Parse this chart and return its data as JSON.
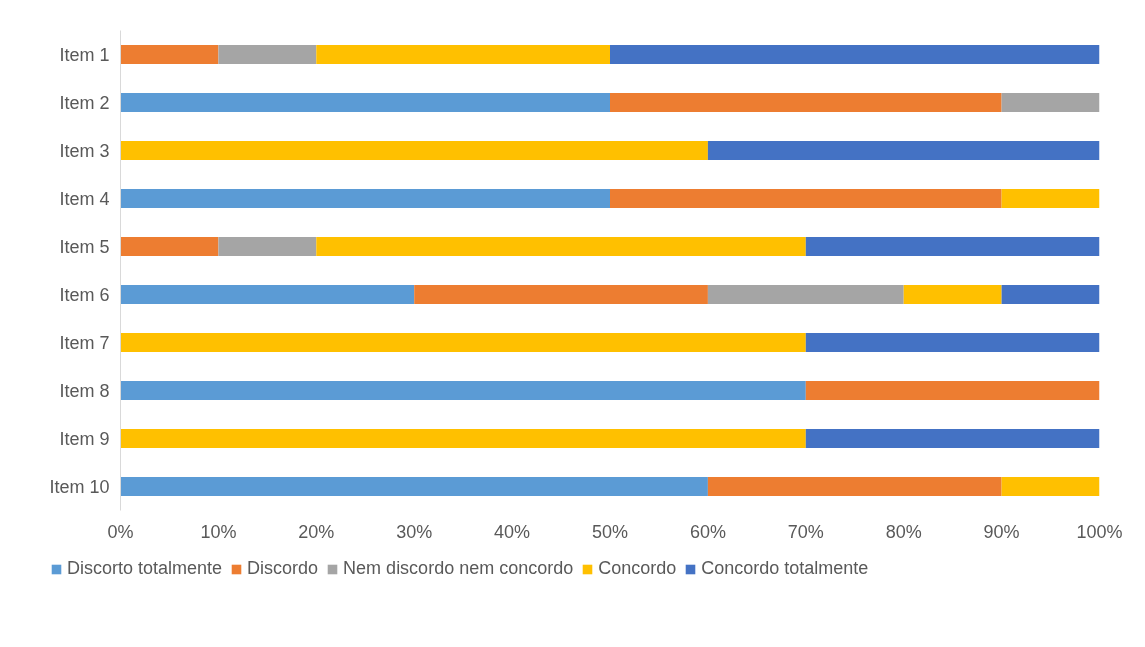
{
  "chart_data": {
    "type": "bar",
    "orientation": "horizontal",
    "stacked": true,
    "categories": [
      "Item 1",
      "Item 2",
      "Item 3",
      "Item 4",
      "Item 5",
      "Item 6",
      "Item 7",
      "Item 8",
      "Item 9",
      "Item 10"
    ],
    "series": [
      {
        "name": "Discorto totalmente",
        "color": "#5b9bd5",
        "values": [
          0,
          50,
          0,
          50,
          0,
          30,
          0,
          70,
          0,
          60
        ]
      },
      {
        "name": "Discordo",
        "color": "#ed7d31",
        "values": [
          10,
          40,
          0,
          40,
          10,
          30,
          0,
          30,
          0,
          30
        ]
      },
      {
        "name": "Nem discordo nem concordo",
        "color": "#a5a5a5",
        "values": [
          10,
          10,
          0,
          0,
          10,
          20,
          0,
          0,
          0,
          0
        ]
      },
      {
        "name": "Concordo",
        "color": "#ffc000",
        "values": [
          30,
          0,
          60,
          10,
          50,
          10,
          70,
          0,
          70,
          10
        ]
      },
      {
        "name": "Concordo totalmente",
        "color": "#4472c4",
        "values": [
          50,
          0,
          40,
          0,
          30,
          10,
          30,
          0,
          30,
          0
        ]
      }
    ],
    "xlim": [
      0,
      100
    ],
    "xticks": [
      {
        "value": 0,
        "label": "0%"
      },
      {
        "value": 10,
        "label": "10%"
      },
      {
        "value": 20,
        "label": "20%"
      },
      {
        "value": 30,
        "label": "30%"
      },
      {
        "value": 40,
        "label": "40%"
      },
      {
        "value": 50,
        "label": "50%"
      },
      {
        "value": 60,
        "label": "60%"
      },
      {
        "value": 70,
        "label": "70%"
      },
      {
        "value": 80,
        "label": "80%"
      },
      {
        "value": 90,
        "label": "90%"
      },
      {
        "value": 100,
        "label": "100%"
      }
    ],
    "grid": false,
    "legend": "bottom"
  }
}
